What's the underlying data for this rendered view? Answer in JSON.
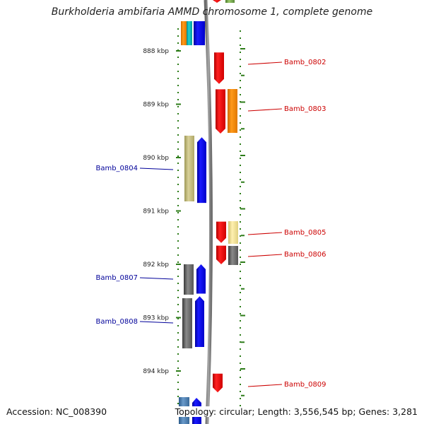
{
  "header": {
    "title": "Burkholderia ambifaria AMMD chromosome 1, complete genome"
  },
  "footer": {
    "accession": "Accession: NC_008390",
    "topology": "Topology: circular; Length: 3,556,545 bp; Genes: 3,281"
  },
  "ruler": {
    "labels": [
      {
        "text": "888 kbp",
        "kbp": 888
      },
      {
        "text": "889 kbp",
        "kbp": 889
      },
      {
        "text": "890 kbp",
        "kbp": 890
      },
      {
        "text": "891 kbp",
        "kbp": 891
      },
      {
        "text": "892 kbp",
        "kbp": 892
      },
      {
        "text": "893 kbp",
        "kbp": 893
      },
      {
        "text": "894 kbp",
        "kbp": 894
      }
    ]
  },
  "colors": {
    "backbone": "#8a8a8a",
    "tick": "#2e7d1a",
    "forward_label": "#cc0000",
    "reverse_label": "#000099"
  },
  "genes": {
    "forward": [
      {
        "name": "Bamb_0802",
        "start_kbp": 888.03,
        "end_kbp": 888.62,
        "color": "#ff1a1a"
      },
      {
        "name": "Bamb_0803",
        "start_kbp": 888.72,
        "end_kbp": 889.55,
        "color": "#ff1a1a"
      },
      {
        "name": "Bamb_0805",
        "start_kbp": 891.2,
        "end_kbp": 891.6,
        "color": "#ff1a1a"
      },
      {
        "name": "Bamb_0806",
        "start_kbp": 891.65,
        "end_kbp": 892.0,
        "color": "#ff1a1a"
      },
      {
        "name": "Bamb_0809",
        "start_kbp": 894.05,
        "end_kbp": 894.4,
        "color": "#ff1a1a"
      }
    ],
    "reverse": [
      {
        "name": "Bamb_0804",
        "start_kbp": 889.62,
        "end_kbp": 890.85,
        "color": "#0000ee"
      },
      {
        "name": "Bamb_0807",
        "start_kbp": 892.0,
        "end_kbp": 892.55,
        "color": "#0000ee"
      },
      {
        "name": "Bamb_0808",
        "start_kbp": 892.6,
        "end_kbp": 893.55,
        "color": "#0000ee"
      }
    ]
  }
}
